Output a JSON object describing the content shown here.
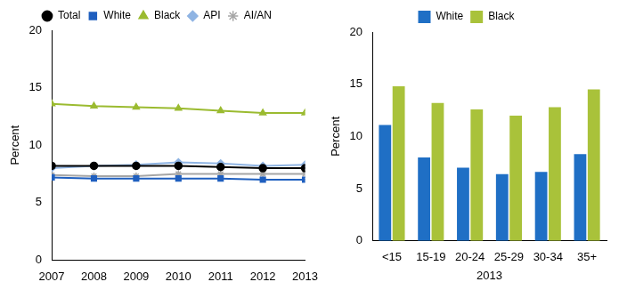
{
  "chart_data": [
    {
      "type": "line",
      "x": [
        "2007",
        "2008",
        "2009",
        "2010",
        "2011",
        "2012",
        "2013"
      ],
      "y_label": "Percent",
      "ylim": [
        0,
        20
      ],
      "yticks": [
        0,
        5,
        10,
        15,
        20
      ],
      "grid": false,
      "legend": "top",
      "series": [
        {
          "name": "Total",
          "color": "#000000",
          "marker": "circle",
          "line_style": "solid",
          "values": [
            8.2,
            8.2,
            8.2,
            8.2,
            8.1,
            8.0,
            8.0
          ]
        },
        {
          "name": "White",
          "color": "#1f5fbf",
          "marker": "square",
          "line_style": "solid",
          "values": [
            7.2,
            7.1,
            7.1,
            7.1,
            7.1,
            7.0,
            7.0
          ]
        },
        {
          "name": "Black",
          "color": "#9bbb30",
          "marker": "triangle",
          "line_style": "solid",
          "values": [
            13.6,
            13.4,
            13.3,
            13.2,
            13.0,
            12.8,
            12.8
          ]
        },
        {
          "name": "API",
          "color": "#8fb4e3",
          "marker": "diamond",
          "line_style": "solid",
          "values": [
            8.0,
            8.2,
            8.3,
            8.5,
            8.4,
            8.2,
            8.3
          ]
        },
        {
          "name": "AI/AN",
          "color": "#a6a6a6",
          "marker": "star",
          "line_style": "solid",
          "values": [
            7.4,
            7.3,
            7.3,
            7.5,
            7.5,
            7.5,
            7.5
          ]
        }
      ]
    },
    {
      "type": "bar",
      "categories": [
        "<15",
        "15-19",
        "20-24",
        "25-29",
        "30-34",
        "35+"
      ],
      "x_label": "2013",
      "y_label": "Percent",
      "ylim": [
        0,
        20
      ],
      "yticks": [
        0,
        5,
        10,
        15,
        20
      ],
      "grid": false,
      "legend": "top",
      "series": [
        {
          "name": "White",
          "color": "#1f6fc5",
          "values": [
            11.1,
            8.0,
            7.0,
            6.4,
            6.6,
            8.3
          ]
        },
        {
          "name": "Black",
          "color": "#a9c23a",
          "values": [
            14.8,
            13.2,
            12.6,
            12.0,
            12.8,
            14.5
          ]
        }
      ]
    }
  ]
}
